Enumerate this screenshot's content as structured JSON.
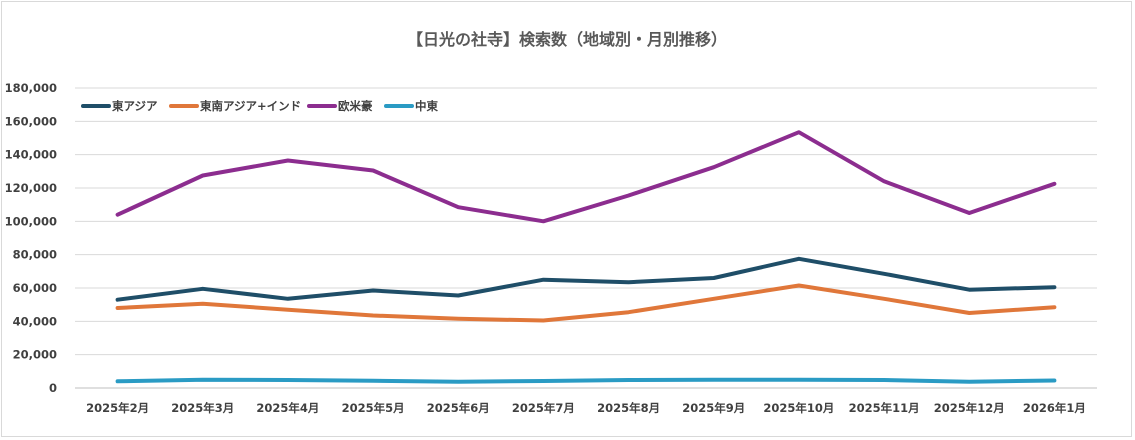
{
  "chart_data": {
    "type": "line",
    "title": "【日光の社寺】検索数（地域別・月別推移）",
    "xlabel": "",
    "ylabel": "",
    "categories": [
      "2025年2月",
      "2025年3月",
      "2025年4月",
      "2025年5月",
      "2025年6月",
      "2025年7月",
      "2025年8月",
      "2025年9月",
      "2025年10月",
      "2025年11月",
      "2025年12月",
      "2026年1月"
    ],
    "ylim": [
      0,
      180000
    ],
    "yticks": [
      0,
      20000,
      40000,
      60000,
      80000,
      100000,
      120000,
      140000,
      160000,
      180000
    ],
    "ytick_labels": [
      "0",
      "20,000",
      "40,000",
      "60,000",
      "80,000",
      "100,000",
      "120,000",
      "140,000",
      "160,000",
      "180,000"
    ],
    "grid": true,
    "legend_position": "top-left",
    "series": [
      {
        "name": "東アジア",
        "color": "#1f4e68",
        "values": [
          53000,
          59500,
          53500,
          58500,
          55500,
          65000,
          63500,
          66000,
          77500,
          68500,
          59000,
          60500
        ]
      },
      {
        "name": "東南アジア+インド",
        "color": "#e0773a",
        "values": [
          48000,
          50500,
          47000,
          43500,
          41500,
          40500,
          45500,
          53500,
          61500,
          53500,
          45000,
          48500
        ]
      },
      {
        "name": "欧米豪",
        "color": "#8c2d8f",
        "values": [
          104000,
          127500,
          136500,
          130500,
          108500,
          100000,
          115500,
          132500,
          153500,
          124000,
          105000,
          122500
        ]
      },
      {
        "name": "中東",
        "color": "#2a9bc4",
        "values": [
          4000,
          5000,
          4800,
          4300,
          3800,
          4200,
          4800,
          5000,
          5000,
          4800,
          3800,
          4500
        ]
      }
    ]
  }
}
